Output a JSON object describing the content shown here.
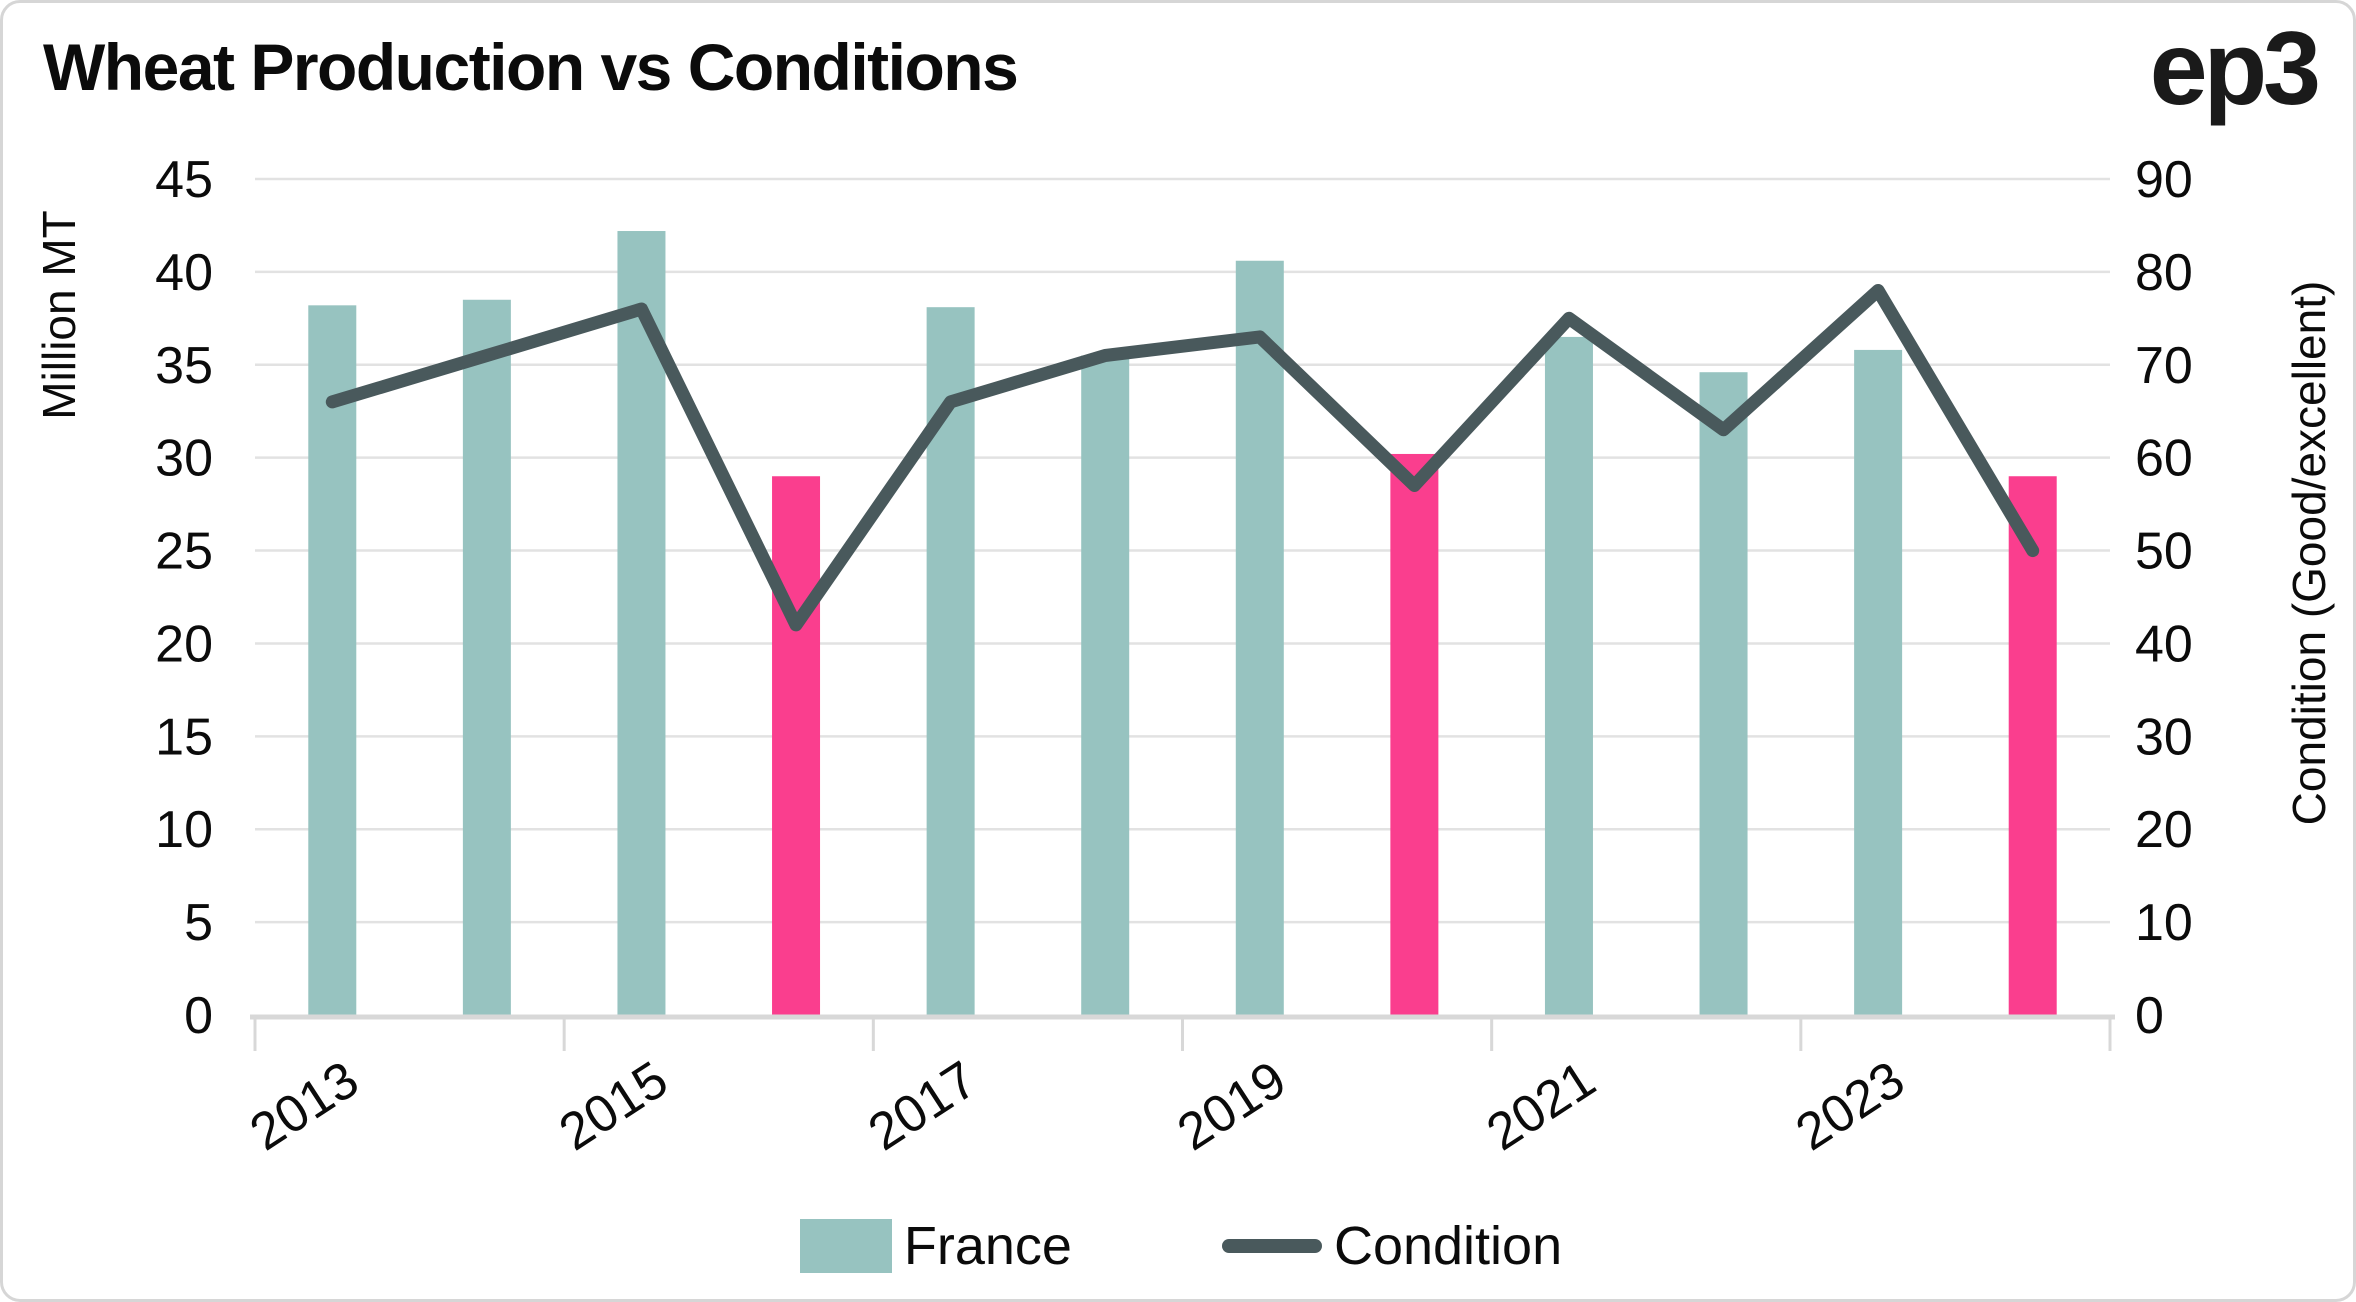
{
  "header": {
    "title": "Wheat Production vs Conditions",
    "logo": "ep3"
  },
  "chart_data": {
    "type": "bar+line",
    "categories": [
      "2013",
      "2014",
      "2015",
      "2016",
      "2017",
      "2018",
      "2019",
      "2020",
      "2021",
      "2022",
      "2023",
      "2024"
    ],
    "series": [
      {
        "name": "France",
        "type": "bar",
        "axis": "left",
        "values": [
          38.2,
          38.5,
          42.2,
          29,
          38.1,
          35.5,
          40.6,
          30.2,
          36.5,
          34.6,
          35.8,
          29
        ],
        "color": "#97c3c0",
        "highlight_color": "#fa3e8e",
        "highlight_categories": [
          "2016",
          "2020",
          "2024"
        ]
      },
      {
        "name": "Condition",
        "type": "line",
        "axis": "right",
        "values": [
          66,
          71,
          76,
          42,
          66,
          71,
          73,
          57,
          75,
          63,
          78,
          50
        ],
        "color": "#49595c"
      }
    ],
    "left_axis": {
      "title": "Million MT",
      "min": 0,
      "max": 45,
      "step": 5
    },
    "right_axis": {
      "title": "Condition (Good/excellent)",
      "min": 0,
      "max": 90,
      "step": 10
    },
    "x_axis": {
      "tick_labels": [
        "2013",
        "2015",
        "2017",
        "2019",
        "2021",
        "2023"
      ],
      "label_every": 2,
      "label_rotation_deg": -33
    },
    "grid": true,
    "legend_position": "bottom"
  },
  "legend": {
    "items": [
      {
        "label": "France",
        "swatch": "square"
      },
      {
        "label": "Condition",
        "swatch": "line"
      }
    ]
  },
  "colors": {
    "bar_teal": "#97c3c0",
    "bar_pink": "#fa3e8e",
    "line": "#49595c",
    "gridline": "#e2e2e2",
    "axis_line": "#d8d8d8",
    "text": "#0b0b0b",
    "frame_border": "#d6d6d6",
    "background": "#ffffff"
  }
}
